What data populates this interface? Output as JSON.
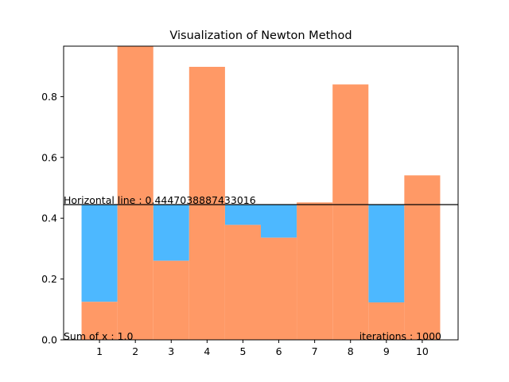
{
  "chart_data": {
    "type": "bar",
    "title": "Visualization of Newton Method",
    "xlabel": "",
    "ylabel": "",
    "categories": [
      "1",
      "2",
      "3",
      "4",
      "5",
      "6",
      "7",
      "8",
      "9",
      "10"
    ],
    "values": [
      0.125,
      0.966,
      0.26,
      0.898,
      0.378,
      0.336,
      0.452,
      0.84,
      0.123,
      0.541
    ],
    "water_level": 0.4447038887433016,
    "xlim": [
      0,
      11
    ],
    "ylim": [
      0,
      0.966
    ],
    "yticks": [
      "0.0",
      "0.2",
      "0.4",
      "0.6",
      "0.8"
    ],
    "grid": false,
    "colors": {
      "bar": "#ff9966",
      "fill": "#4db8ff",
      "line": "#000000"
    },
    "annotations": {
      "horizontal_line": "Horizontal line : 0.4447038887433016",
      "sum": "Sum of x : 1.0",
      "iterations": "iterations : 1000"
    }
  }
}
